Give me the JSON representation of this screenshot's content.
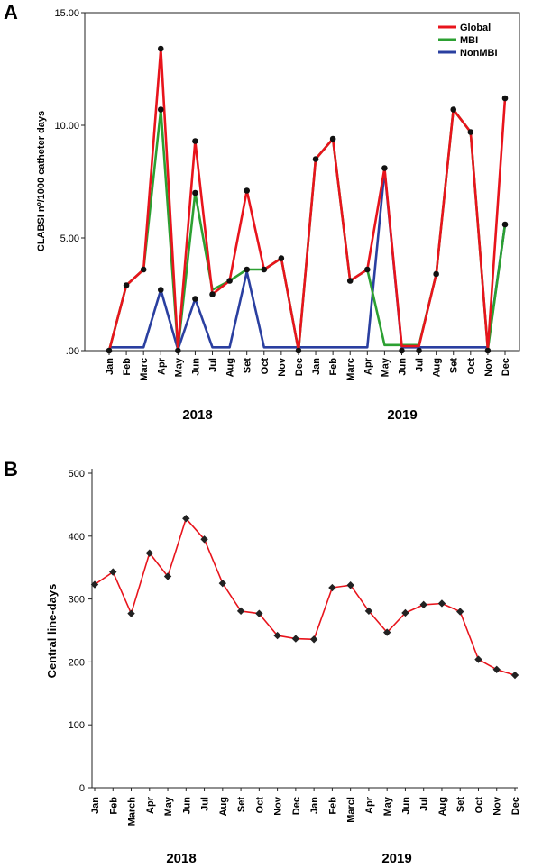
{
  "chart_data": [
    {
      "type": "line",
      "panel_label": "A",
      "ylabel": "CLABSI nº/1000 catheter days",
      "yticks": [
        ".00",
        "5.00",
        "10.00",
        "15.00"
      ],
      "ylim": [
        0,
        15
      ],
      "categories": [
        "Jan",
        "Feb",
        "Marc",
        "Apr",
        "May",
        "Jun",
        "Jul",
        "Aug",
        "Set",
        "Oct",
        "Nov",
        "Dec",
        "Jan",
        "Feb",
        "Marc",
        "Apr",
        "May",
        "Jun",
        "Jul",
        "Aug",
        "Set",
        "Oct",
        "Nov",
        "Dec"
      ],
      "groups": [
        "2018",
        "2019"
      ],
      "legend_position": "top-right",
      "series": [
        {
          "name": "Global",
          "color": "#e8141c",
          "values": [
            0,
            2.9,
            3.6,
            13.4,
            0.05,
            9.3,
            2.5,
            3.1,
            7.1,
            3.6,
            4.1,
            0,
            8.5,
            9.4,
            3.1,
            3.6,
            8.1,
            0.2,
            0.2,
            3.4,
            10.7,
            9.7,
            0.05,
            11.2
          ]
        },
        {
          "name": "MBI",
          "color": "#2ca032",
          "values": [
            0,
            2.9,
            3.6,
            10.7,
            0.05,
            7.0,
            2.7,
            3.1,
            3.6,
            3.6,
            4.1,
            0,
            8.5,
            9.4,
            3.1,
            3.6,
            0.25,
            0.25,
            0.25,
            3.4,
            10.7,
            9.7,
            0.05,
            5.6
          ]
        },
        {
          "name": "NonMBI",
          "color": "#2a3fa0",
          "values": [
            0.15,
            0.15,
            0.15,
            2.7,
            0.05,
            2.3,
            0.15,
            0.15,
            3.5,
            0.15,
            0.15,
            0.15,
            0.15,
            0.15,
            0.15,
            0.15,
            8.0,
            0.15,
            0.15,
            0.15,
            0.15,
            0.15,
            0.15,
            5.6
          ]
        }
      ],
      "markers": [
        0,
        2.9,
        3.6,
        13.4,
        10.7,
        2.7,
        0,
        9.3,
        7.0,
        2.3,
        2.5,
        3.1,
        7.1,
        3.6,
        3.6,
        4.1,
        0,
        8.5,
        9.4,
        3.1,
        3.6,
        8.1,
        0,
        0,
        3.4,
        10.7,
        9.7,
        0,
        11.2,
        5.6
      ],
      "marker_cats": [
        0,
        1,
        2,
        3,
        3,
        3,
        4,
        5,
        5,
        5,
        6,
        7,
        8,
        8,
        9,
        10,
        11,
        12,
        13,
        14,
        15,
        16,
        17,
        18,
        19,
        20,
        21,
        22,
        23,
        23
      ]
    },
    {
      "type": "line",
      "panel_label": "B",
      "ylabel": "Central line-days",
      "yticks": [
        "0",
        "100",
        "200",
        "300",
        "400",
        "500"
      ],
      "ylim": [
        0,
        500
      ],
      "categories": [
        "Jan",
        "Feb",
        "March",
        "Apr",
        "May",
        "Jun",
        "Jul",
        "Aug",
        "Set",
        "Oct",
        "Nov",
        "Dec",
        "Jan",
        "Feb",
        "Marcl",
        "Apr",
        "May",
        "Jun",
        "Jul",
        "Aug",
        "Set",
        "Oct",
        "Nov",
        "Dec"
      ],
      "groups": [
        "2018",
        "2019"
      ],
      "series": [
        {
          "color": "#e8141c",
          "marker_color": "#222222",
          "values": [
            323,
            343,
            277,
            373,
            336,
            428,
            395,
            325,
            281,
            277,
            242,
            237,
            236,
            318,
            322,
            281,
            247,
            278,
            291,
            293,
            280,
            204,
            188,
            179
          ]
        }
      ]
    }
  ]
}
